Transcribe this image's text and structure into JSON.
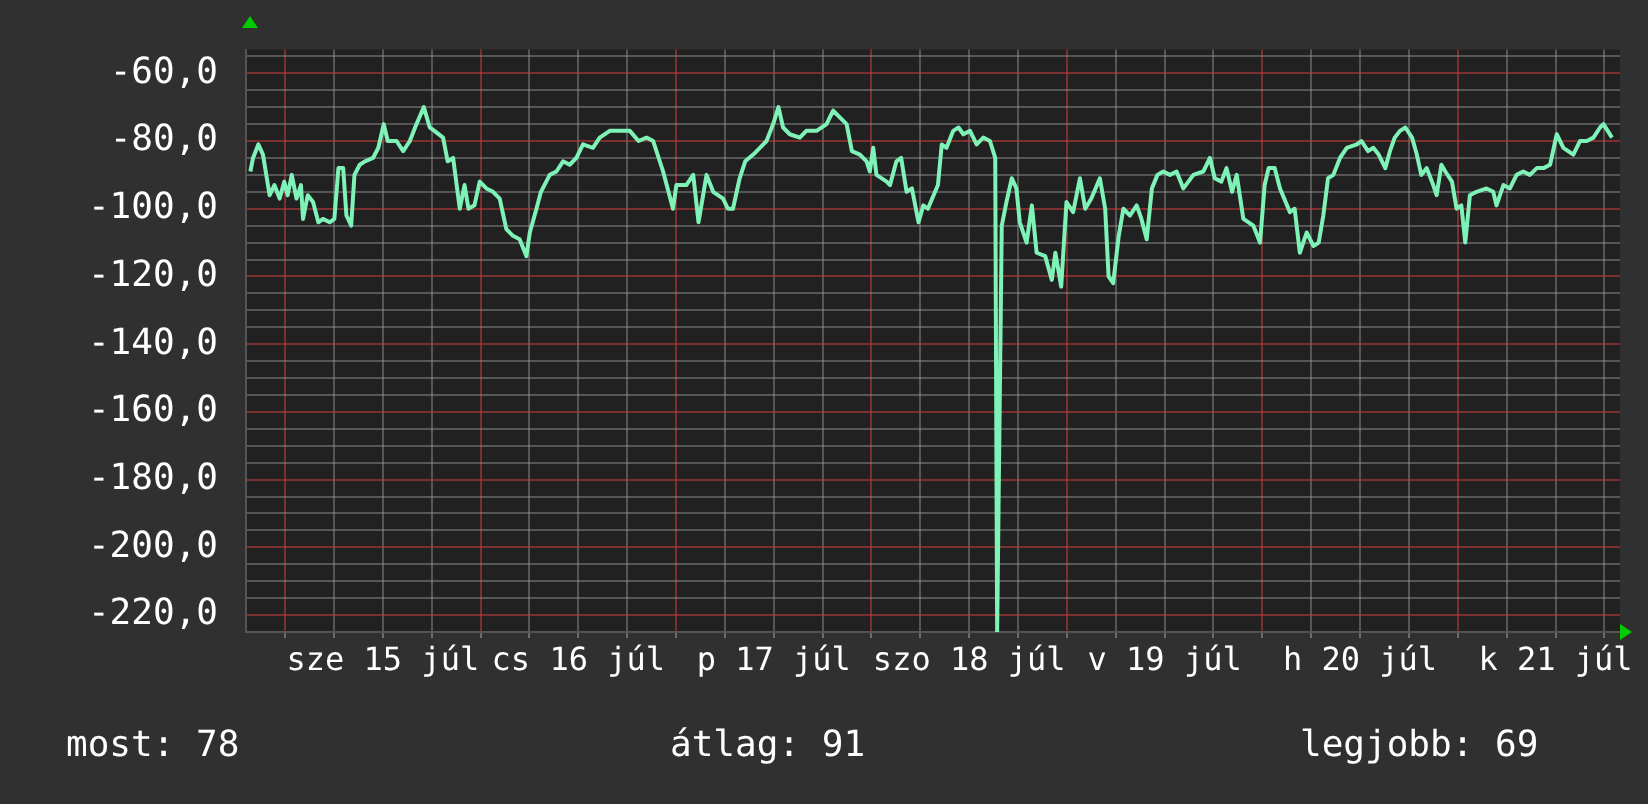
{
  "chart_data": {
    "type": "line",
    "color": "#7ef2b7",
    "x": [
      "--07-14T19:44",
      "--07-14T20:04",
      "--07-14T20:43",
      "--07-14T21:17",
      "--07-14T22:06",
      "--07-14T22:41",
      "--07-14T23:20",
      "--07-14T23:54",
      "--07-15T00:19",
      "--07-15T00:49",
      "--07-15T01:24",
      "--07-15T01:57",
      "--07-15T02:12",
      "--07-15T02:47",
      "--07-15T03:26",
      "--07-15T04:05",
      "--07-15T04:39",
      "--07-15T05:28",
      "--07-15T06:03",
      "--07-15T06:33",
      "--07-15T07:08",
      "--07-15T07:32",
      "--07-15T08:07",
      "--07-15T08:31",
      "--07-15T09:10",
      "--07-15T09:49",
      "--07-15T10:48",
      "--07-15T11:27",
      "--07-15T12:07",
      "--07-15T12:36",
      "--07-15T13:41",
      "--07-15T14:30",
      "--07-15T15:19",
      "--07-15T16:08",
      "--07-15T17:02",
      "--07-15T17:46",
      "--07-15T18:20",
      "--07-15T19:24",
      "--07-15T19:58",
      "--07-15T20:38",
      "--07-15T21:27",
      "--07-15T22:02",
      "--07-15T22:31",
      "--07-15T23:15",
      "--07-15T23:54",
      "--07-16T00:43",
      "--07-16T01:32",
      "--07-16T02:21",
      "--07-16T03:10",
      "--07-16T03:59",
      "--07-16T04:48",
      "--07-16T05:38",
      "--07-16T06:03",
      "--07-16T06:52",
      "--07-16T07:25",
      "--07-16T08:30",
      "--07-16T09:19",
      "--07-16T10:08",
      "--07-16T10:57",
      "--07-16T11:46",
      "--07-16T12:35",
      "--07-16T13:48",
      "--07-16T14:38",
      "--07-16T15:52",
      "--07-16T17:05",
      "--07-16T18:20",
      "--07-16T19:24",
      "--07-16T20:23",
      "--07-16T21:12",
      "--07-16T22:25",
      "--07-16T23:38",
      "--07-17T00:03",
      "--07-17T01:16",
      "--07-17T02:07",
      "--07-17T02:46",
      "--07-17T03:20",
      "--07-17T03:45",
      "--07-17T04:34",
      "--07-17T05:47",
      "--07-17T06:22",
      "--07-17T07:00",
      "--07-17T07:49",
      "--07-17T08:30",
      "--07-17T09:29",
      "--07-17T10:18",
      "--07-17T11:07",
      "--07-17T11:56",
      "--07-17T12:35",
      "--07-17T13:09",
      "--07-17T13:58",
      "--07-17T15:12",
      "--07-17T16:00",
      "--07-17T17:15",
      "--07-17T18:29",
      "--07-17T19:18",
      "--07-17T20:07",
      "--07-17T20:57",
      "--07-17T21:36",
      "--07-17T22:35",
      "--07-17T23:24",
      "--07-17T23:48",
      "--07-18T00:13",
      "--07-18T00:37",
      "--07-18T01:52",
      "--07-18T02:17",
      "--07-18T03:04",
      "--07-18T03:39",
      "--07-18T04:19",
      "--07-18T04:58",
      "--07-18T05:47",
      "--07-18T06:22",
      "--07-18T06:56",
      "--07-18T08:10",
      "--07-18T08:38",
      "--07-18T09:13",
      "--07-18T10:02",
      "--07-18T10:42",
      "--07-18T11:17",
      "--07-18T12:06",
      "--07-18T12:55",
      "--07-18T13:44",
      "--07-18T14:33",
      "--07-18T15:12",
      "--07-18T15:26",
      "--07-18T16:00",
      "--07-18T16:35",
      "--07-18T17:14",
      "--07-18T17:48",
      "--07-18T18:13",
      "--07-18T19:03",
      "--07-18T19:42",
      "--07-18T20:17",
      "--07-18T21:20",
      "--07-18T22:09",
      "--07-18T22:35",
      "--07-18T23:18",
      "--07-18T23:57",
      "--07-19T00:46",
      "--07-19T01:36",
      "--07-19T02:15",
      "--07-19T03:00",
      "--07-19T04:03",
      "--07-19T04:42",
      "--07-19T05:07",
      "--07-19T05:41",
      "--07-19T06:22",
      "--07-19T06:56",
      "--07-19T07:45",
      "--07-19T08:34",
      "--07-19T09:09",
      "--07-19T09:48",
      "--07-19T10:26",
      "--07-19T11:07",
      "--07-19T11:50",
      "--07-19T12:39",
      "--07-19T13:28",
      "--07-19T14:18",
      "--07-19T15:32",
      "--07-19T16:45",
      "--07-19T17:34",
      "--07-19T18:09",
      "--07-19T18:58",
      "--07-19T19:36",
      "--07-19T20:17",
      "--07-19T20:51",
      "--07-19T21:40",
      "--07-19T22:54",
      "--07-19T23:43",
      "--07-20T00:17",
      "--07-20T00:46",
      "--07-20T01:31",
      "--07-20T02:10",
      "--07-20T03:23",
      "--07-20T03:58",
      "--07-20T04:36",
      "--07-20T05:27",
      "--07-20T06:16",
      "--07-20T06:55",
      "--07-20T07:29",
      "--07-20T08:04",
      "--07-20T08:43",
      "--07-20T09:32",
      "--07-20T10:22",
      "--07-20T11:36",
      "--07-20T12:10",
      "--07-20T12:59",
      "--07-20T13:38",
      "--07-20T14:17",
      "--07-20T15:06",
      "--07-20T15:40",
      "--07-20T16:15",
      "--07-20T16:54",
      "--07-20T17:34",
      "--07-20T18:23",
      "--07-20T18:58",
      "--07-20T19:31",
      "--07-20T20:11",
      "--07-20T20:50",
      "--07-20T21:24",
      "--07-20T21:59",
      "--07-20T22:28",
      "--07-20T23:17",
      "--07-20T23:51",
      "--07-21T00:26",
      "--07-21T00:55",
      "--07-21T01:29",
      "--07-21T02:18",
      "--07-21T03:32",
      "--07-21T04:21",
      "--07-21T04:45",
      "--07-21T05:36",
      "--07-21T06:24",
      "--07-21T07:13",
      "--07-21T08:02",
      "--07-21T08:51",
      "--07-21T09:42",
      "--07-21T10:31",
      "--07-21T11:20",
      "--07-21T12:09",
      "--07-21T12:58",
      "--07-21T14:11",
      "--07-21T15:00",
      "--07-21T15:50",
      "--07-21T16:39",
      "--07-21T17:28",
      "--07-21T17:53",
      "--07-21T18:56"
    ],
    "values": [
      -89,
      -85,
      -81,
      -84,
      -96,
      -93,
      -97,
      -92,
      -96,
      -90,
      -97,
      -93,
      -103,
      -96,
      -98,
      -104,
      -103,
      -104,
      -103,
      -88,
      -88,
      -102,
      -105,
      -90,
      -87,
      -86,
      -85,
      -82,
      -75,
      -80,
      -80,
      -83,
      -80,
      -75,
      -70,
      -76,
      -77,
      -79,
      -86,
      -85,
      -100,
      -93,
      -100,
      -99,
      -92,
      -94,
      -95,
      -97,
      -106,
      -108,
      -109,
      -114,
      -107,
      -100,
      -95,
      -90,
      -89,
      -86,
      -87,
      -85,
      -81,
      -82,
      -79,
      -77,
      -77,
      -77,
      -80,
      -79,
      -80,
      -89,
      -100,
      -93,
      -93,
      -90,
      -104,
      -96,
      -90,
      -95,
      -97,
      -100,
      -100,
      -91,
      -86,
      -84,
      -82,
      -80,
      -75,
      -70,
      -76,
      -78,
      -79,
      -77,
      -77,
      -75,
      -71,
      -73,
      -75,
      -83,
      -84,
      -86,
      -89,
      -82,
      -90,
      -92,
      -93,
      -86,
      -85,
      -95,
      -94,
      -104,
      -99,
      -100,
      -93,
      -81,
      -82,
      -77,
      -76,
      -78,
      -77,
      -81,
      -79,
      -80,
      -85,
      -225,
      -105,
      -98,
      -91,
      -94,
      -104,
      -110,
      -99,
      -113,
      -114,
      -121,
      -113,
      -123,
      -98,
      -101,
      -91,
      -100,
      -97,
      -91,
      -100,
      -120,
      -122,
      -108,
      -100,
      -102,
      -99,
      -103,
      -109,
      -94,
      -90,
      -89,
      -90,
      -89,
      -94,
      -90,
      -89,
      -85,
      -91,
      -92,
      -88,
      -95,
      -90,
      -103,
      -105,
      -110,
      -93,
      -88,
      -88,
      -94,
      -101,
      -100,
      -113,
      -107,
      -111,
      -110,
      -102,
      -91,
      -90,
      -85,
      -82,
      -81,
      -80,
      -83,
      -82,
      -84,
      -88,
      -83,
      -79,
      -77,
      -76,
      -79,
      -84,
      -90,
      -88,
      -92,
      -96,
      -87,
      -89,
      -92,
      -100,
      -99,
      -110,
      -96,
      -95,
      -94,
      -95,
      -99,
      -93,
      -94,
      -90,
      -89,
      -90,
      -88,
      -88,
      -87,
      -78,
      -82,
      -84,
      -80,
      -80,
      -79,
      -76,
      -75,
      -79
    ],
    "xlim": [
      "--07-14T19:12",
      "--07-21T19:55"
    ],
    "xticks": [
      {
        "value": "--07-15T00:00",
        "label": null
      },
      {
        "value": "--07-15T06:00",
        "label": null
      },
      {
        "value": "--07-15T12:00",
        "label": "sze 15 júl"
      },
      {
        "value": "--07-15T18:00",
        "label": null
      },
      {
        "value": "--07-16T00:00",
        "label": null
      },
      {
        "value": "--07-16T06:00",
        "label": null
      },
      {
        "value": "--07-16T12:00",
        "label": "cs 16 júl"
      },
      {
        "value": "--07-16T18:00",
        "label": null
      },
      {
        "value": "--07-17T00:00",
        "label": null
      },
      {
        "value": "--07-17T06:00",
        "label": null
      },
      {
        "value": "--07-17T12:00",
        "label": "p 17 júl"
      },
      {
        "value": "--07-17T18:00",
        "label": null
      },
      {
        "value": "--07-18T00:00",
        "label": null
      },
      {
        "value": "--07-18T06:00",
        "label": null
      },
      {
        "value": "--07-18T12:00",
        "label": "szo 18 júl"
      },
      {
        "value": "--07-18T18:00",
        "label": null
      },
      {
        "value": "--07-19T00:00",
        "label": null
      },
      {
        "value": "--07-19T06:00",
        "label": null
      },
      {
        "value": "--07-19T12:00",
        "label": "v 19 júl"
      },
      {
        "value": "--07-19T18:00",
        "label": null
      },
      {
        "value": "--07-20T00:00",
        "label": null
      },
      {
        "value": "--07-20T06:00",
        "label": null
      },
      {
        "value": "--07-20T12:00",
        "label": "h 20 júl"
      },
      {
        "value": "--07-20T18:00",
        "label": null
      },
      {
        "value": "--07-21T00:00",
        "label": null
      },
      {
        "value": "--07-21T06:00",
        "label": null
      },
      {
        "value": "--07-21T12:00",
        "label": "k 21 júl"
      },
      {
        "value": "--07-21T18:00",
        "label": null
      }
    ],
    "ylim": [
      -225,
      -53
    ],
    "yticks": [
      {
        "value": -220,
        "label": "-220,0"
      },
      {
        "value": -215,
        "label": null
      },
      {
        "value": -210,
        "label": null
      },
      {
        "value": -205,
        "label": null
      },
      {
        "value": -200,
        "label": "-200,0"
      },
      {
        "value": -195,
        "label": null
      },
      {
        "value": -190,
        "label": null
      },
      {
        "value": -185,
        "label": null
      },
      {
        "value": -180,
        "label": "-180,0"
      },
      {
        "value": -175,
        "label": null
      },
      {
        "value": -170,
        "label": null
      },
      {
        "value": -165,
        "label": null
      },
      {
        "value": -160,
        "label": "-160,0"
      },
      {
        "value": -155,
        "label": null
      },
      {
        "value": -150,
        "label": null
      },
      {
        "value": -145,
        "label": null
      },
      {
        "value": -140,
        "label": "-140,0"
      },
      {
        "value": -135,
        "label": null
      },
      {
        "value": -130,
        "label": null
      },
      {
        "value": -125,
        "label": null
      },
      {
        "value": -120,
        "label": "-120,0"
      },
      {
        "value": -115,
        "label": null
      },
      {
        "value": -110,
        "label": null
      },
      {
        "value": -105,
        "label": null
      },
      {
        "value": -100,
        "label": "-100,0"
      },
      {
        "value": -95,
        "label": null
      },
      {
        "value": -90,
        "label": null
      },
      {
        "value": -85,
        "label": null
      },
      {
        "value": -80,
        "label": "-80,0"
      },
      {
        "value": -75,
        "label": null
      },
      {
        "value": -70,
        "label": null
      },
      {
        "value": -65,
        "label": null
      },
      {
        "value": -60,
        "label": "-60,0"
      },
      {
        "value": -55,
        "label": null
      }
    ],
    "grid": true,
    "annotations": [
      "most: 78",
      "átlag: 91",
      "legjobb: 69"
    ]
  }
}
